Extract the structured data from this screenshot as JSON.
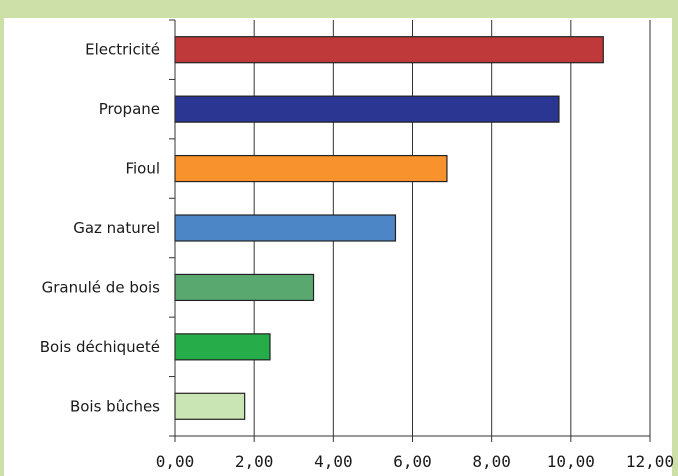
{
  "chart_data": {
    "type": "bar",
    "orientation": "horizontal",
    "title": "",
    "xlabel": "",
    "ylabel": "",
    "categories": [
      "Electricité",
      "Propane",
      "Fioul",
      "Gaz naturel",
      "Granulé de bois",
      "Bois déchiqueté",
      "Bois bûches"
    ],
    "values": [
      10.82,
      9.7,
      6.87,
      5.57,
      3.5,
      2.4,
      1.76
    ],
    "colors": [
      "#c0393a",
      "#2b3592",
      "#f7922d",
      "#4c86c6",
      "#59a86f",
      "#26ad4a",
      "#c9e5b3"
    ],
    "xlim": [
      0,
      12
    ],
    "xticks": [
      "0,00",
      "2,00",
      "4,00",
      "6,00",
      "8,00",
      "10,00",
      "12,00"
    ],
    "grid": true,
    "legend": "none"
  }
}
